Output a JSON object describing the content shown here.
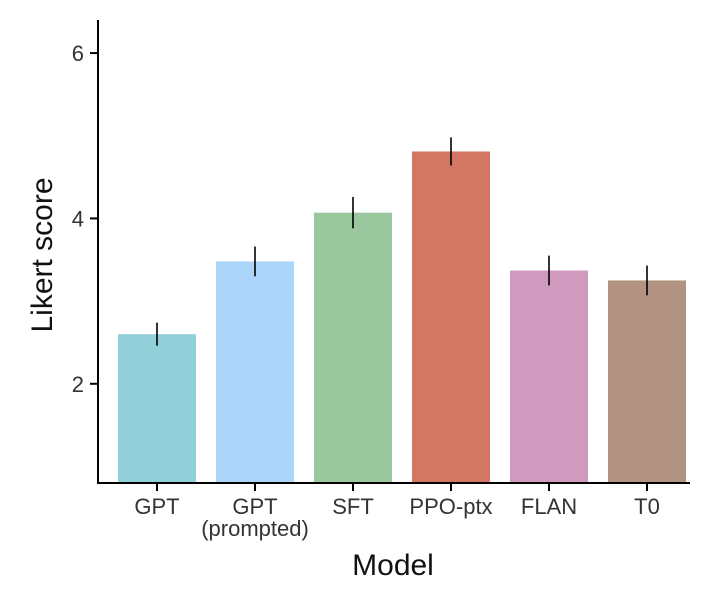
{
  "chart_data": {
    "type": "bar",
    "xlabel": "Model",
    "ylabel": "Likert score",
    "categories": [
      [
        "GPT"
      ],
      [
        "GPT",
        "(prompted)"
      ],
      [
        "SFT"
      ],
      [
        "PPO-ptx"
      ],
      [
        "FLAN"
      ],
      [
        "T0"
      ]
    ],
    "values": [
      2.6,
      3.48,
      4.07,
      4.81,
      3.37,
      3.25
    ],
    "error_low": [
      2.46,
      3.3,
      3.88,
      4.64,
      3.19,
      3.07
    ],
    "error_high": [
      2.74,
      3.66,
      4.26,
      4.98,
      3.55,
      3.43
    ],
    "colors": [
      "#91cfd9",
      "#acd5fa",
      "#9ac79e",
      "#d37764",
      "#cf9abd",
      "#b29382"
    ],
    "ylim": [
      0.8,
      6.4
    ],
    "yticks": [
      2,
      4,
      6
    ],
    "grid": false,
    "legend": "none"
  }
}
